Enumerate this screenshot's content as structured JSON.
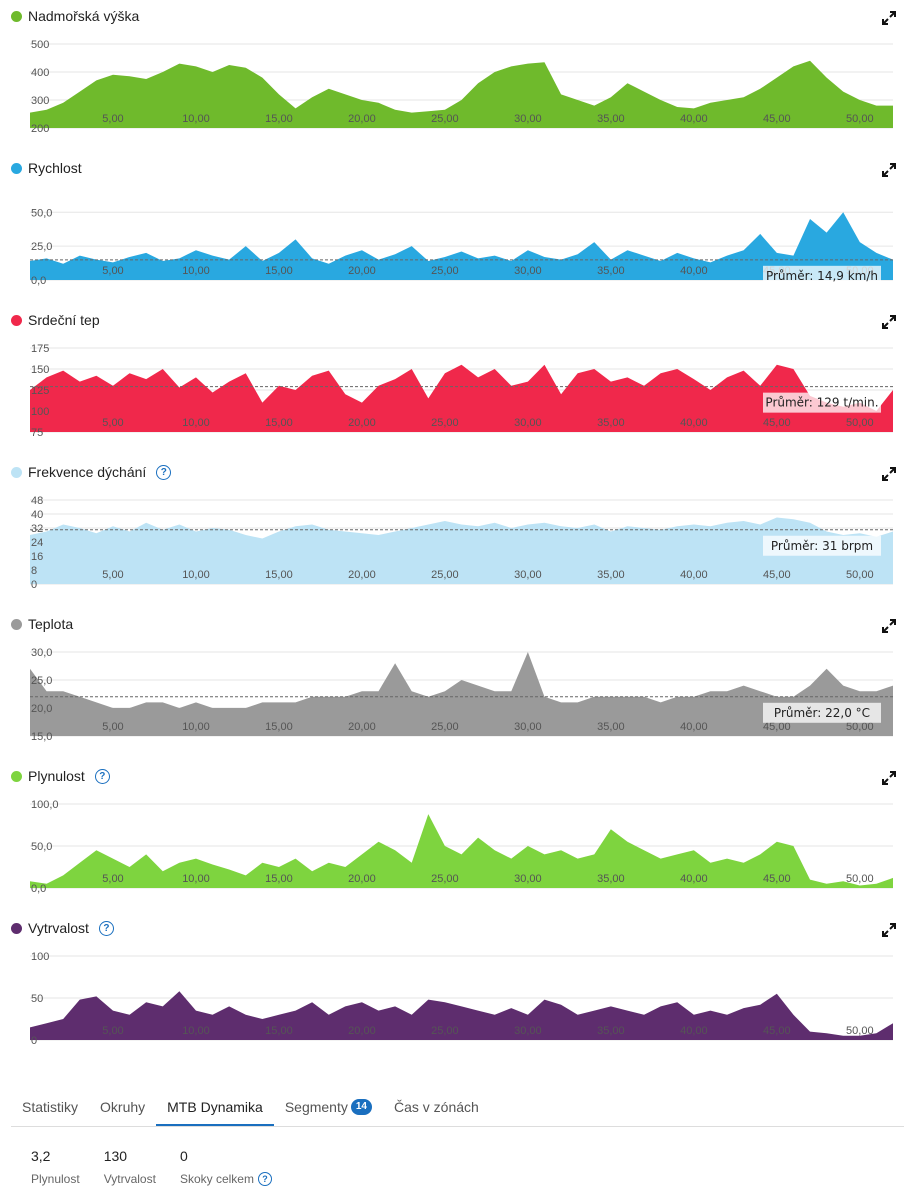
{
  "chart_data": [
    {
      "id": "elev",
      "type": "area",
      "title": "Nadmořská výška",
      "color": "#6fba2c",
      "help": false,
      "ylim": [
        200,
        500
      ],
      "yticks": [
        "200",
        "300",
        "400",
        "500"
      ],
      "ytick_values": [
        200,
        300,
        400,
        500
      ],
      "x": [
        0,
        1,
        2,
        3,
        4,
        5,
        6,
        7,
        8,
        9,
        10,
        11,
        12,
        13,
        14,
        15,
        16,
        17,
        18,
        19,
        20,
        21,
        22,
        23,
        24,
        25,
        26,
        27,
        28,
        29,
        30,
        31,
        32,
        33,
        34,
        35,
        36,
        37,
        38,
        39,
        40,
        41,
        42,
        43,
        44,
        45,
        46,
        47,
        48,
        49,
        50,
        51,
        52
      ],
      "values": [
        255,
        265,
        290,
        330,
        370,
        390,
        385,
        375,
        400,
        430,
        420,
        400,
        425,
        415,
        380,
        320,
        270,
        310,
        340,
        320,
        300,
        290,
        265,
        255,
        260,
        265,
        300,
        360,
        400,
        420,
        430,
        435,
        320,
        300,
        280,
        310,
        360,
        330,
        300,
        275,
        270,
        290,
        300,
        310,
        340,
        380,
        420,
        440,
        380,
        330,
        300,
        280,
        280
      ],
      "avg": null,
      "avg_label": "",
      "xticks": [
        "5,00",
        "10,00",
        "15,00",
        "20,00",
        "25,00",
        "30,00",
        "35,00",
        "40,00",
        "45,00",
        "50,00"
      ]
    },
    {
      "id": "speed",
      "type": "area",
      "title": "Rychlost",
      "color": "#29a8e0",
      "help": false,
      "ylim": [
        0,
        62
      ],
      "yticks": [
        "0,0",
        "25,0",
        "50,0"
      ],
      "ytick_values": [
        0,
        25,
        50
      ],
      "x": [
        0,
        1,
        2,
        3,
        4,
        5,
        6,
        7,
        8,
        9,
        10,
        11,
        12,
        13,
        14,
        15,
        16,
        17,
        18,
        19,
        20,
        21,
        22,
        23,
        24,
        25,
        26,
        27,
        28,
        29,
        30,
        31,
        32,
        33,
        34,
        35,
        36,
        37,
        38,
        39,
        40,
        41,
        42,
        43,
        44,
        45,
        46,
        47,
        48,
        49,
        50,
        51,
        52
      ],
      "values": [
        14,
        16,
        12,
        18,
        15,
        13,
        17,
        20,
        14,
        16,
        22,
        18,
        15,
        25,
        14,
        20,
        30,
        16,
        12,
        18,
        22,
        15,
        19,
        25,
        14,
        17,
        21,
        16,
        18,
        14,
        22,
        17,
        15,
        19,
        28,
        15,
        22,
        18,
        14,
        20,
        16,
        13,
        18,
        22,
        34,
        20,
        18,
        45,
        35,
        50,
        28,
        20,
        15
      ],
      "avg": 14.9,
      "avg_label": "Průměr: 14,9 km/h",
      "xticks": [
        "5,00",
        "10,00",
        "15,00",
        "20,00",
        "25,00",
        "30,00",
        "35,00",
        "40,00",
        "45,00",
        "50,00"
      ]
    },
    {
      "id": "hr",
      "type": "area",
      "title": "Srdeční tep",
      "color": "#f0284b",
      "help": false,
      "ylim": [
        75,
        175
      ],
      "yticks": [
        "75",
        "100",
        "125",
        "150",
        "175"
      ],
      "ytick_values": [
        75,
        100,
        125,
        150,
        175
      ],
      "x": [
        0,
        1,
        2,
        3,
        4,
        5,
        6,
        7,
        8,
        9,
        10,
        11,
        12,
        13,
        14,
        15,
        16,
        17,
        18,
        19,
        20,
        21,
        22,
        23,
        24,
        25,
        26,
        27,
        28,
        29,
        30,
        31,
        32,
        33,
        34,
        35,
        36,
        37,
        38,
        39,
        40,
        41,
        42,
        43,
        44,
        45,
        46,
        47,
        48,
        49,
        50,
        51,
        52
      ],
      "values": [
        125,
        140,
        148,
        135,
        142,
        130,
        145,
        138,
        150,
        128,
        140,
        122,
        135,
        145,
        110,
        130,
        125,
        142,
        148,
        120,
        110,
        130,
        138,
        150,
        115,
        145,
        155,
        140,
        150,
        130,
        135,
        155,
        120,
        145,
        150,
        135,
        140,
        130,
        145,
        150,
        138,
        125,
        140,
        148,
        130,
        155,
        150,
        118,
        110,
        105,
        110,
        100,
        125
      ],
      "avg": 129,
      "avg_label": "Průměr: 129 t/min.",
      "xticks": [
        "5,00",
        "10,00",
        "15,00",
        "20,00",
        "25,00",
        "30,00",
        "35,00",
        "40,00",
        "45,00",
        "50,00"
      ]
    },
    {
      "id": "resp",
      "type": "area",
      "title": "Frekvence dýchání",
      "color": "#bde3f5",
      "help": true,
      "ylim": [
        0,
        48
      ],
      "yticks": [
        "0",
        "8",
        "16",
        "24",
        "32",
        "40",
        "48"
      ],
      "ytick_values": [
        0,
        8,
        16,
        24,
        32,
        40,
        48
      ],
      "x": [
        0,
        1,
        2,
        3,
        4,
        5,
        6,
        7,
        8,
        9,
        10,
        11,
        12,
        13,
        14,
        15,
        16,
        17,
        18,
        19,
        20,
        21,
        22,
        23,
        24,
        25,
        26,
        27,
        28,
        29,
        30,
        31,
        32,
        33,
        34,
        35,
        36,
        37,
        38,
        39,
        40,
        41,
        42,
        43,
        44,
        45,
        46,
        47,
        48,
        49,
        50,
        51,
        52
      ],
      "values": [
        28,
        30,
        34,
        32,
        29,
        33,
        30,
        35,
        31,
        34,
        30,
        32,
        31,
        28,
        26,
        30,
        33,
        34,
        31,
        30,
        29,
        28,
        30,
        32,
        34,
        36,
        34,
        33,
        35,
        32,
        34,
        35,
        33,
        32,
        34,
        30,
        33,
        32,
        31,
        33,
        34,
        33,
        35,
        36,
        34,
        38,
        37,
        35,
        30,
        28,
        29,
        27,
        30
      ],
      "avg": 31,
      "avg_label": "Průměr: 31 brpm",
      "xticks": [
        "5,00",
        "10,00",
        "15,00",
        "20,00",
        "25,00",
        "30,00",
        "35,00",
        "40,00",
        "45,00",
        "50,00"
      ]
    },
    {
      "id": "temp",
      "type": "area",
      "title": "Teplota",
      "color": "#9a9a9a",
      "help": false,
      "ylim": [
        15,
        30
      ],
      "yticks": [
        "15,0",
        "20,0",
        "25,0",
        "30,0"
      ],
      "ytick_values": [
        15,
        20,
        25,
        30
      ],
      "x": [
        0,
        1,
        2,
        3,
        4,
        5,
        6,
        7,
        8,
        9,
        10,
        11,
        12,
        13,
        14,
        15,
        16,
        17,
        18,
        19,
        20,
        21,
        22,
        23,
        24,
        25,
        26,
        27,
        28,
        29,
        30,
        31,
        32,
        33,
        34,
        35,
        36,
        37,
        38,
        39,
        40,
        41,
        42,
        43,
        44,
        45,
        46,
        47,
        48,
        49,
        50,
        51,
        52
      ],
      "values": [
        27,
        23,
        23,
        22,
        21,
        20,
        20,
        21,
        21,
        20,
        21,
        20,
        20,
        20,
        21,
        21,
        21,
        22,
        22,
        22,
        23,
        23,
        28,
        23,
        22,
        23,
        25,
        24,
        23,
        23,
        30,
        22,
        21,
        21,
        22,
        22,
        22,
        22,
        21,
        22,
        22,
        23,
        23,
        24,
        23,
        22,
        22,
        24,
        27,
        24,
        23,
        23,
        24
      ],
      "avg": 22.0,
      "avg_label": "Průměr: 22,0 °C",
      "xticks": [
        "5,00",
        "10,00",
        "15,00",
        "20,00",
        "25,00",
        "30,00",
        "35,00",
        "40,00",
        "45,00",
        "50,00"
      ]
    },
    {
      "id": "flow",
      "type": "area",
      "title": "Plynulost",
      "color": "#7ed43f",
      "help": true,
      "ylim": [
        0,
        100
      ],
      "yticks": [
        "0,0",
        "50,0",
        "100,0"
      ],
      "ytick_values": [
        0,
        50,
        100
      ],
      "x": [
        0,
        1,
        2,
        3,
        4,
        5,
        6,
        7,
        8,
        9,
        10,
        11,
        12,
        13,
        14,
        15,
        16,
        17,
        18,
        19,
        20,
        21,
        22,
        23,
        24,
        25,
        26,
        27,
        28,
        29,
        30,
        31,
        32,
        33,
        34,
        35,
        36,
        37,
        38,
        39,
        40,
        41,
        42,
        43,
        44,
        45,
        46,
        47,
        48,
        49,
        50,
        51,
        52
      ],
      "values": [
        8,
        5,
        15,
        30,
        45,
        35,
        25,
        40,
        20,
        30,
        35,
        28,
        22,
        15,
        30,
        25,
        35,
        20,
        30,
        25,
        40,
        55,
        45,
        30,
        88,
        50,
        40,
        60,
        45,
        35,
        50,
        40,
        45,
        35,
        40,
        70,
        55,
        45,
        35,
        40,
        45,
        30,
        35,
        30,
        40,
        55,
        50,
        10,
        5,
        8,
        3,
        5,
        12
      ],
      "avg": null,
      "avg_label": "",
      "xticks": [
        "5,00",
        "10,00",
        "15,00",
        "20,00",
        "25,00",
        "30,00",
        "35,00",
        "40,00",
        "45,00",
        "50,00"
      ]
    },
    {
      "id": "endur",
      "type": "area",
      "title": "Vytrvalost",
      "color": "#5e2d6e",
      "help": true,
      "ylim": [
        0,
        100
      ],
      "yticks": [
        "0",
        "50",
        "100"
      ],
      "ytick_values": [
        0,
        50,
        100
      ],
      "x": [
        0,
        1,
        2,
        3,
        4,
        5,
        6,
        7,
        8,
        9,
        10,
        11,
        12,
        13,
        14,
        15,
        16,
        17,
        18,
        19,
        20,
        21,
        22,
        23,
        24,
        25,
        26,
        27,
        28,
        29,
        30,
        31,
        32,
        33,
        34,
        35,
        36,
        37,
        38,
        39,
        40,
        41,
        42,
        43,
        44,
        45,
        46,
        47,
        48,
        49,
        50,
        51,
        52
      ],
      "values": [
        15,
        20,
        25,
        48,
        52,
        35,
        30,
        45,
        40,
        58,
        35,
        30,
        40,
        30,
        25,
        30,
        35,
        45,
        30,
        40,
        45,
        35,
        40,
        30,
        48,
        45,
        40,
        35,
        30,
        38,
        30,
        48,
        42,
        30,
        35,
        40,
        35,
        30,
        40,
        45,
        30,
        35,
        30,
        38,
        42,
        55,
        30,
        10,
        8,
        5,
        5,
        8,
        20
      ],
      "avg": null,
      "avg_label": "",
      "xticks": [
        "5,00",
        "10,00",
        "15,00",
        "20,00",
        "25,00",
        "30,00",
        "35,00",
        "40,00",
        "45,00",
        "50,00"
      ]
    }
  ],
  "tabs": [
    {
      "label": "Statistiky",
      "active": false,
      "badge": ""
    },
    {
      "label": "Okruhy",
      "active": false,
      "badge": ""
    },
    {
      "label": "MTB Dynamika",
      "active": true,
      "badge": ""
    },
    {
      "label": "Segmenty",
      "active": false,
      "badge": "14"
    },
    {
      "label": "Čas v zónách",
      "active": false,
      "badge": ""
    }
  ],
  "stats": [
    {
      "value": "3,2",
      "label": "Plynulost",
      "help": false
    },
    {
      "value": "130",
      "label": "Vytrvalost",
      "help": false
    },
    {
      "value": "0",
      "label": "Skoky celkem",
      "help": true
    }
  ],
  "colors": {
    "accent": "#1a6fbf",
    "avg_line": "#666666",
    "grid": "#e6e6e6"
  }
}
